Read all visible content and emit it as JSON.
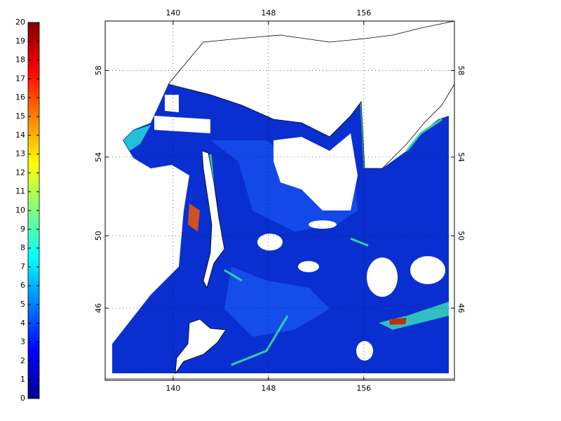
{
  "colorbar": {
    "colormap": "jet",
    "clim": [
      0,
      20
    ],
    "ticks": [
      0,
      1,
      2,
      3,
      4,
      5,
      6,
      7,
      8,
      9,
      10,
      11,
      12,
      13,
      14,
      15,
      16,
      17,
      18,
      19,
      20
    ]
  },
  "map": {
    "projection": "mercator",
    "xlim": [
      134.3,
      163.6
    ],
    "ylim": [
      41.7,
      60.1
    ],
    "xticks": [
      140,
      148,
      156
    ],
    "yticks": [
      46,
      50,
      54,
      58
    ],
    "grid": true
  }
}
